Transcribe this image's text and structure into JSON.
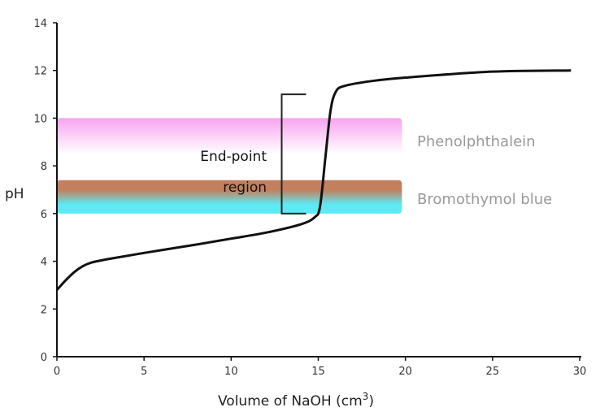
{
  "chart_data": {
    "type": "line",
    "title": "",
    "xlabel": "Volume of NaOH (cm",
    "xlabel_sup": "3",
    "xlabel_close": ")",
    "ylabel": "pH",
    "xlim": [
      0,
      30
    ],
    "ylim": [
      0,
      14
    ],
    "xticks": [
      0,
      5,
      10,
      15,
      20,
      25,
      30
    ],
    "yticks": [
      0,
      2,
      4,
      6,
      8,
      10,
      12,
      14
    ],
    "grid": false,
    "series": [
      {
        "color": "#111111",
        "x": [
          0,
          0.5,
          1,
          1.5,
          2,
          3,
          5,
          8,
          10,
          12,
          14,
          14.8,
          15.1,
          15.4,
          15.7,
          16,
          16.5,
          18,
          20,
          25,
          29.5
        ],
        "y": [
          2.8,
          3.2,
          3.55,
          3.8,
          3.95,
          4.1,
          4.35,
          4.7,
          4.95,
          5.2,
          5.55,
          5.85,
          6.3,
          8.3,
          10.3,
          11.1,
          11.35,
          11.55,
          11.7,
          11.95,
          12.0
        ]
      }
    ],
    "indicator_bands": [
      {
        "name": "Phenolphthalein",
        "ph_range": [
          8.7,
          10
        ],
        "x_range": [
          0,
          19.8
        ],
        "color_top": "#f7a3f0",
        "color_bottom": "#ffffff"
      },
      {
        "name": "Bromothymol blue",
        "ph_range": [
          6.0,
          7.4
        ],
        "x_range": [
          0,
          19.8
        ],
        "color_top": "#c2805e",
        "color_bottom": "#5eeaf4"
      }
    ],
    "annotations": {
      "endpoint_line1": "End-point",
      "endpoint_line2": "region",
      "bracket_ph": [
        6.0,
        11.0
      ],
      "bracket_x": [
        12.9,
        14.3
      ]
    }
  }
}
